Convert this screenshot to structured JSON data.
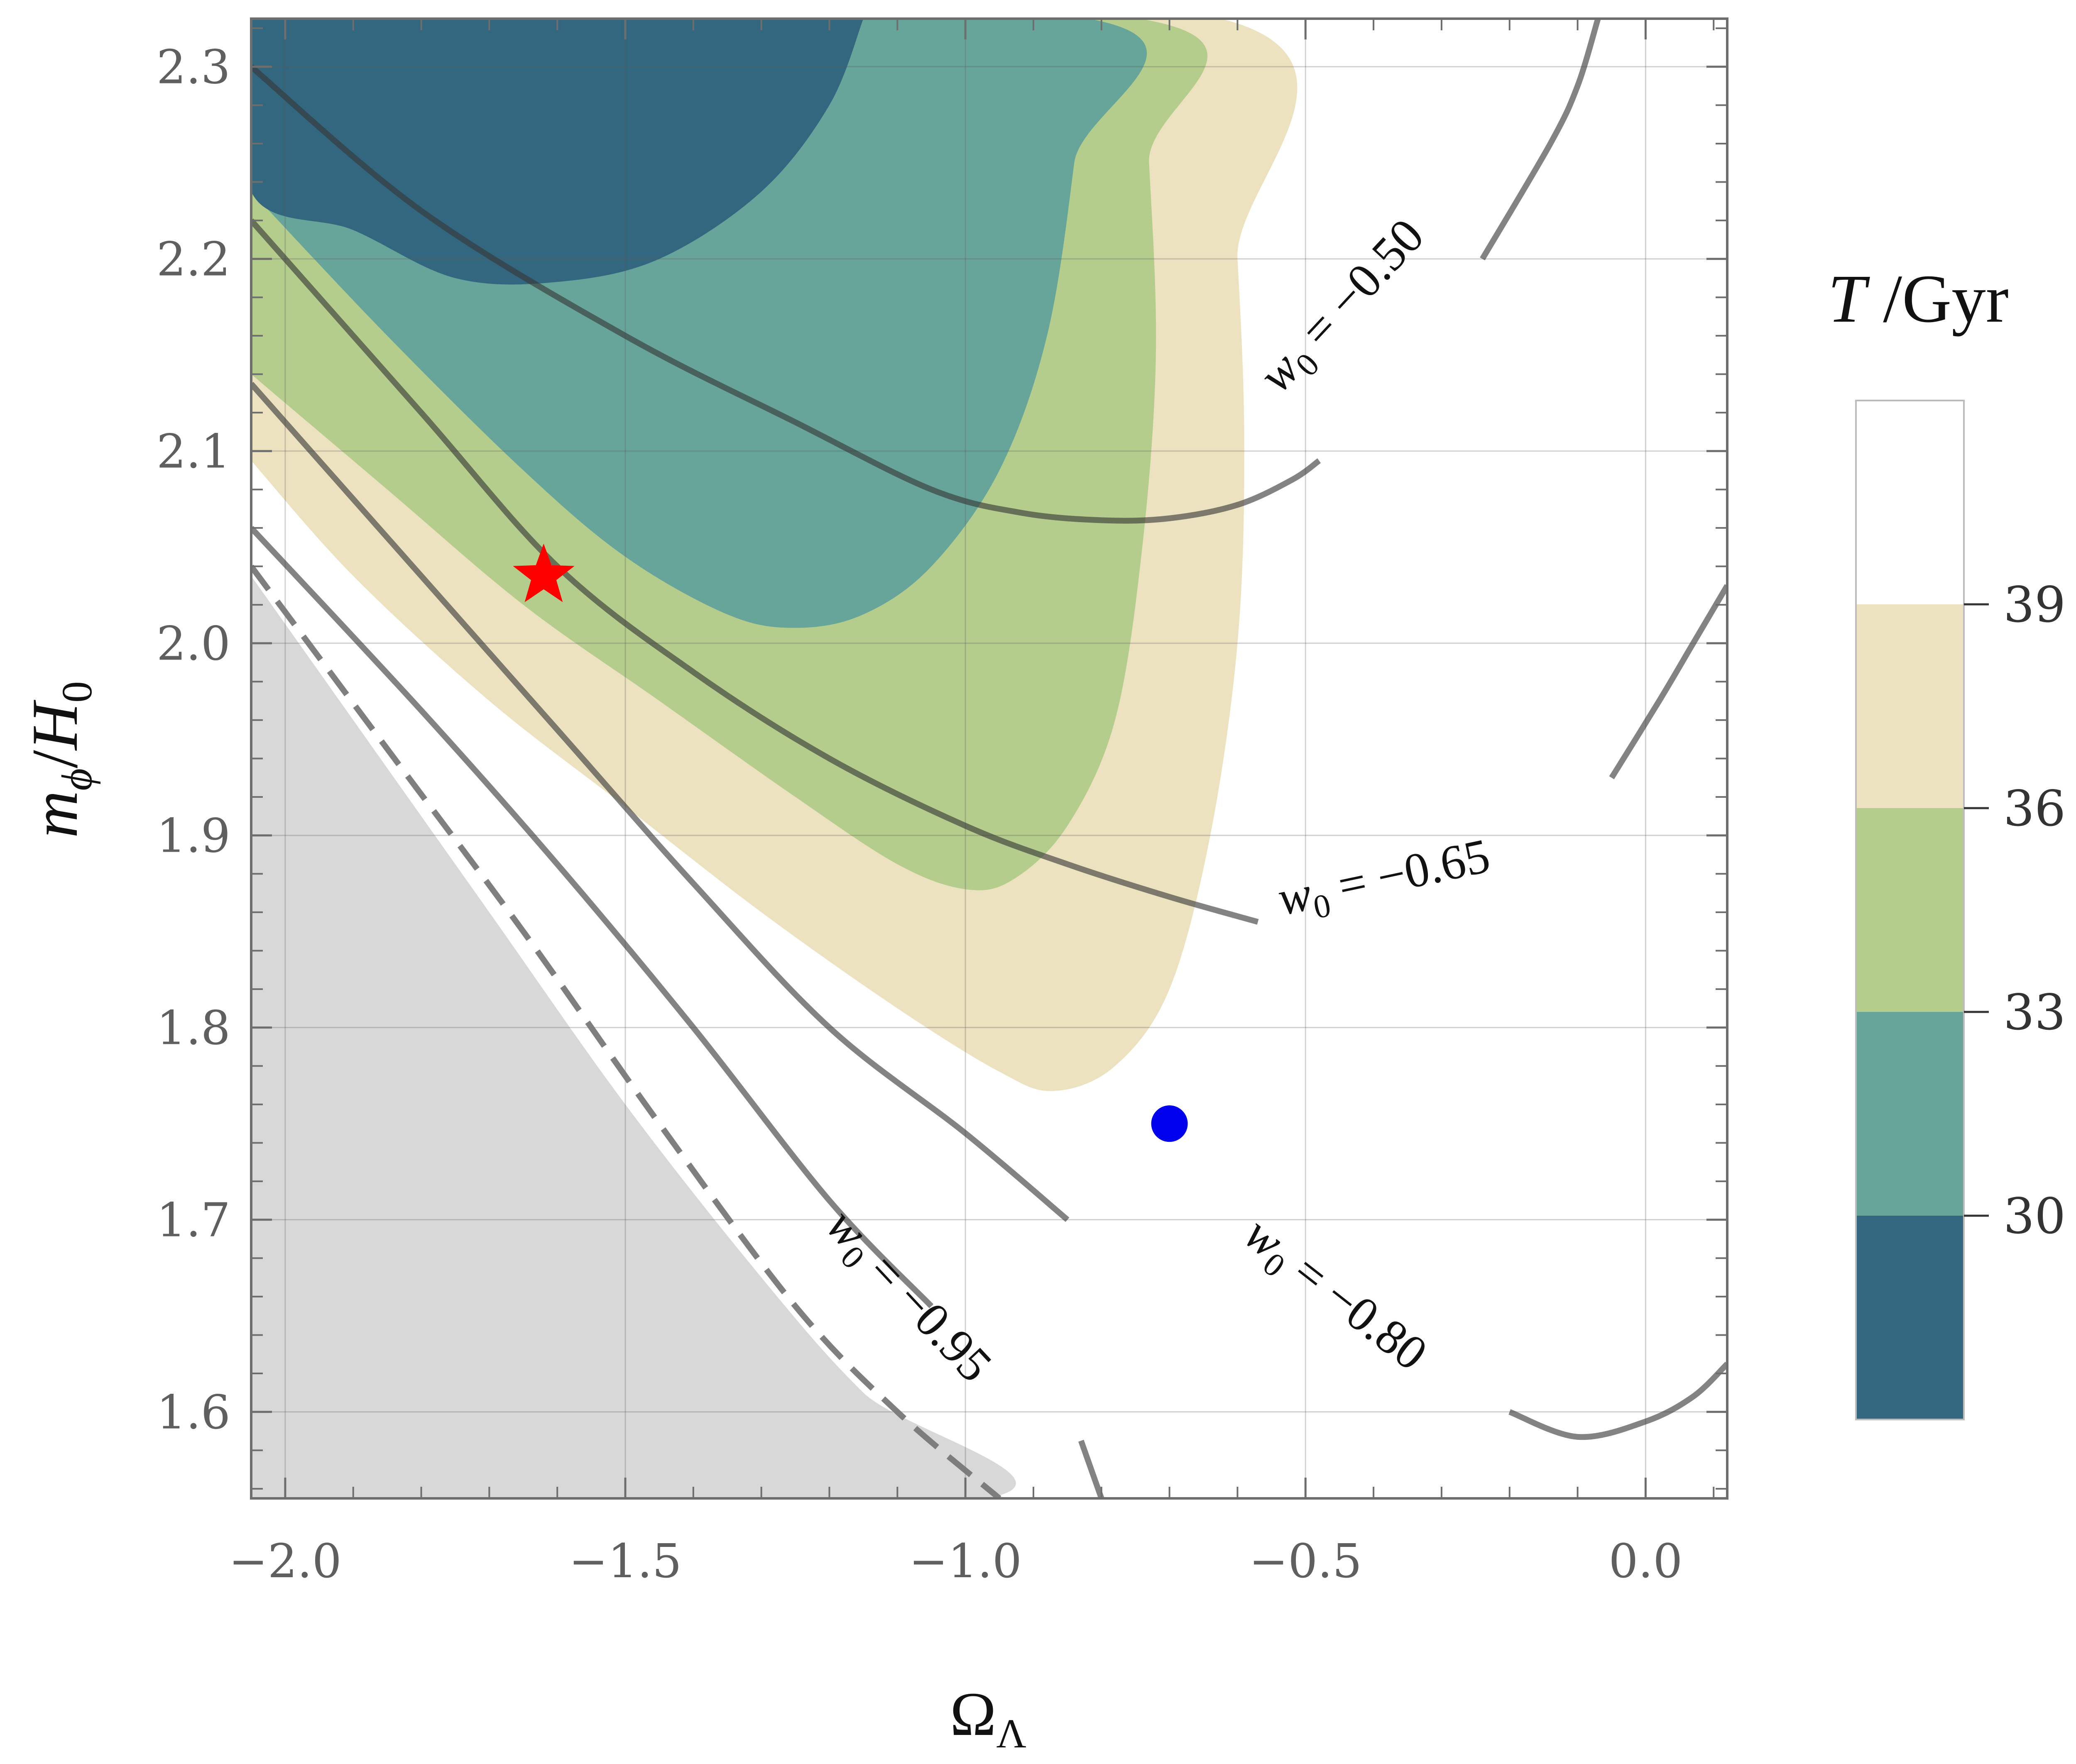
{
  "chart_data": {
    "type": "contour",
    "x_axis": {
      "label": "Ω_Λ",
      "range": [
        -2.05,
        0.12
      ],
      "ticks": [
        -2.0,
        -1.5,
        -1.0,
        -0.5,
        0.0
      ],
      "tick_labels": [
        "−2.0",
        "−1.5",
        "−1.0",
        "−0.5",
        "0.0"
      ]
    },
    "y_axis": {
      "label": "m_ϕ/H_0",
      "range": [
        1.555,
        2.325
      ],
      "ticks": [
        1.6,
        1.7,
        1.8,
        1.9,
        2.0,
        2.1,
        2.2,
        2.3
      ],
      "tick_labels": [
        "1.6",
        "1.7",
        "1.8",
        "1.9",
        "2.0",
        "2.1",
        "2.2",
        "2.3"
      ]
    },
    "grid": true,
    "colorbar": {
      "title": "T /Gyr",
      "ticks": [
        30,
        33,
        36,
        39
      ],
      "tick_labels": [
        "30",
        "33",
        "36",
        "39"
      ],
      "range": [
        27.0,
        42.0
      ],
      "bands": [
        {
          "from": 27.0,
          "to": 30.0,
          "color": "#33667f"
        },
        {
          "from": 30.0,
          "to": 33.0,
          "color": "#67a59a"
        },
        {
          "from": 33.0,
          "to": 36.0,
          "color": "#b4cd8c"
        },
        {
          "from": 36.0,
          "to": 39.0,
          "color": "#ede2bf"
        },
        {
          "from": 39.0,
          "to": 42.0,
          "color": "#ffffff"
        }
      ]
    },
    "filled_regions": [
      {
        "name": "T 36-39 Gyr",
        "color": "#ede2bf",
        "boundary": [
          [
            -2.05,
            2.095
          ],
          [
            -1.9,
            2.035
          ],
          [
            -1.7,
            1.97
          ],
          [
            -1.5,
            1.915
          ],
          [
            -1.3,
            1.86
          ],
          [
            -1.1,
            1.81
          ],
          [
            -0.95,
            1.777
          ],
          [
            -0.87,
            1.767
          ],
          [
            -0.78,
            1.78
          ],
          [
            -0.7,
            1.82
          ],
          [
            -0.64,
            1.9
          ],
          [
            -0.6,
            2.0
          ],
          [
            -0.59,
            2.1
          ],
          [
            -0.6,
            2.2
          ],
          [
            -0.625,
            2.325
          ],
          [
            -2.05,
            2.325
          ]
        ]
      },
      {
        "name": "T 33-36 Gyr",
        "color": "#b4cd8c",
        "boundary": [
          [
            -2.05,
            2.14
          ],
          [
            -1.85,
            2.08
          ],
          [
            -1.65,
            2.02
          ],
          [
            -1.45,
            1.97
          ],
          [
            -1.25,
            1.92
          ],
          [
            -1.1,
            1.885
          ],
          [
            -1.0,
            1.872
          ],
          [
            -0.93,
            1.877
          ],
          [
            -0.85,
            1.905
          ],
          [
            -0.78,
            1.96
          ],
          [
            -0.74,
            2.05
          ],
          [
            -0.72,
            2.15
          ],
          [
            -0.73,
            2.25
          ],
          [
            -0.745,
            2.325
          ],
          [
            -2.05,
            2.325
          ]
        ]
      },
      {
        "name": "T 30-33 Gyr",
        "color": "#67a59a",
        "boundary": [
          [
            -2.05,
            2.235
          ],
          [
            -1.85,
            2.16
          ],
          [
            -1.65,
            2.09
          ],
          [
            -1.5,
            2.045
          ],
          [
            -1.35,
            2.015
          ],
          [
            -1.25,
            2.008
          ],
          [
            -1.15,
            2.015
          ],
          [
            -1.05,
            2.04
          ],
          [
            -0.95,
            2.09
          ],
          [
            -0.88,
            2.16
          ],
          [
            -0.84,
            2.25
          ],
          [
            -0.82,
            2.325
          ],
          [
            -2.05,
            2.325
          ]
        ]
      },
      {
        "name": "T < 30 Gyr",
        "color": "#33667f",
        "boundary": [
          [
            -2.05,
            2.325
          ],
          [
            -2.05,
            2.235
          ],
          [
            -1.9,
            2.215
          ],
          [
            -1.75,
            2.19
          ],
          [
            -1.6,
            2.188
          ],
          [
            -1.45,
            2.2
          ],
          [
            -1.3,
            2.235
          ],
          [
            -1.2,
            2.28
          ],
          [
            -1.15,
            2.325
          ]
        ]
      },
      {
        "name": "excluded region",
        "color": "#d8d8d8",
        "boundary": [
          [
            -2.05,
            2.035
          ],
          [
            -1.9,
            1.96
          ],
          [
            -1.7,
            1.86
          ],
          [
            -1.5,
            1.76
          ],
          [
            -1.3,
            1.67
          ],
          [
            -1.15,
            1.61
          ],
          [
            -0.97,
            1.555
          ],
          [
            -2.05,
            1.555
          ]
        ]
      }
    ],
    "w0_contours": [
      {
        "label": "w_0 = −0.50",
        "w0": -0.5,
        "label_at": [
          -0.43,
          2.17
        ],
        "label_angle_deg": -47,
        "segments": [
          [
            [
              -2.05,
              2.3
            ],
            [
              -1.8,
              2.225
            ],
            [
              -1.5,
              2.16
            ],
            [
              -1.25,
              2.115
            ],
            [
              -1.05,
              2.08
            ],
            [
              -0.92,
              2.068
            ],
            [
              -0.8,
              2.064
            ],
            [
              -0.7,
              2.065
            ],
            [
              -0.6,
              2.072
            ],
            [
              -0.52,
              2.085
            ],
            [
              -0.48,
              2.095
            ]
          ],
          [
            [
              -0.24,
              2.2
            ],
            [
              -0.14,
              2.26
            ],
            [
              -0.1,
              2.29
            ],
            [
              -0.07,
              2.325
            ]
          ]
        ]
      },
      {
        "label": "w_0 = −0.65",
        "w0": -0.65,
        "label_at": [
          -0.38,
          1.87
        ],
        "label_angle_deg": -12,
        "segments": [
          [
            [
              -2.05,
              2.22
            ],
            [
              -1.8,
              2.12
            ],
            [
              -1.6,
              2.04
            ],
            [
              -1.4,
              1.985
            ],
            [
              -1.2,
              1.94
            ],
            [
              -1.0,
              1.905
            ],
            [
              -0.85,
              1.885
            ],
            [
              -0.7,
              1.868
            ],
            [
              -0.57,
              1.855
            ]
          ],
          [
            [
              -0.05,
              1.93
            ],
            [
              0.02,
              1.97
            ],
            [
              0.07,
              2.0
            ],
            [
              0.12,
              2.03
            ]
          ]
        ]
      },
      {
        "label": "w_0 = −0.80",
        "w0": -0.8,
        "label_at": [
          -0.47,
          1.655
        ],
        "label_angle_deg": 38,
        "segments": [
          [
            [
              -2.05,
              2.135
            ],
            [
              -1.8,
              2.035
            ],
            [
              -1.6,
              1.955
            ],
            [
              -1.4,
              1.875
            ],
            [
              -1.2,
              1.8
            ],
            [
              -1.0,
              1.745
            ],
            [
              -0.85,
              1.7
            ]
          ],
          [
            [
              -0.2,
              1.6
            ],
            [
              -0.1,
              1.587
            ],
            [
              0.0,
              1.595
            ],
            [
              0.07,
              1.608
            ],
            [
              0.12,
              1.625
            ]
          ]
        ]
      },
      {
        "label": "w_0 = −0.95",
        "w0": -0.95,
        "label_at": [
          -1.1,
          1.655
        ],
        "label_angle_deg": 47,
        "segments": [
          [
            [
              -2.05,
              2.06
            ],
            [
              -1.8,
              1.965
            ],
            [
              -1.6,
              1.885
            ],
            [
              -1.4,
              1.8
            ],
            [
              -1.2,
              1.71
            ],
            [
              -1.05,
              1.655
            ]
          ],
          [
            [
              -0.83,
              1.585
            ],
            [
              -0.8,
              1.555
            ]
          ]
        ]
      },
      {
        "label": "",
        "w0": -1.0,
        "style": "dashed",
        "segments": [
          [
            [
              -2.05,
              2.04
            ],
            [
              -1.85,
              1.945
            ],
            [
              -1.65,
              1.85
            ],
            [
              -1.45,
              1.75
            ],
            [
              -1.25,
              1.655
            ],
            [
              -1.1,
              1.6
            ],
            [
              -0.95,
              1.555
            ]
          ]
        ]
      }
    ],
    "markers": [
      {
        "name": "red star",
        "shape": "star",
        "color": "#ff0000",
        "x": -1.62,
        "y": 2.035
      },
      {
        "name": "blue dot",
        "shape": "circle",
        "color": "#0000ee",
        "x": -0.7,
        "y": 1.75
      }
    ]
  }
}
